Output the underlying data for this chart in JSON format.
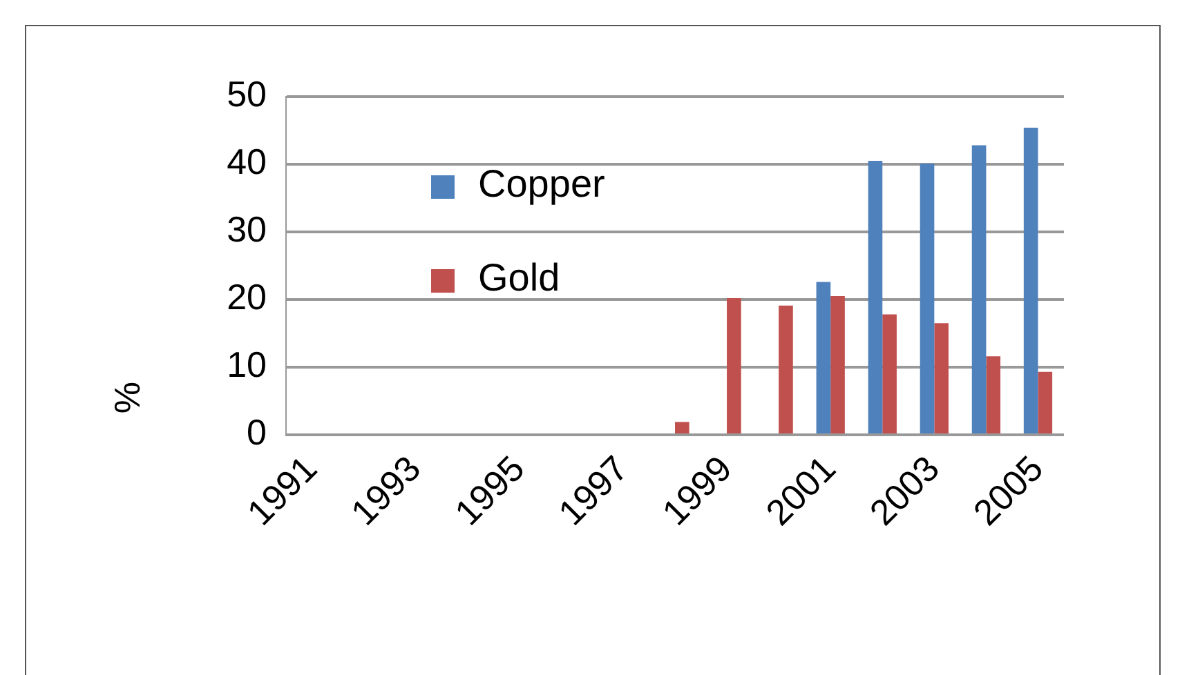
{
  "chart_data": {
    "type": "bar",
    "ylabel": "%",
    "categories": [
      "1991",
      null,
      "1993",
      null,
      "1995",
      null,
      "1997",
      null,
      "1999",
      null,
      "2001",
      null,
      "2003",
      null,
      "2005"
    ],
    "series": [
      {
        "name": "Copper",
        "color": "#4f81bd",
        "values": [
          0,
          0,
          0,
          0,
          0,
          0,
          0,
          0,
          0,
          0,
          22.6,
          40.5,
          40.1,
          42.8,
          45.4
        ]
      },
      {
        "name": "Gold",
        "color": "#c0504d",
        "values": [
          0,
          0,
          0,
          0,
          0,
          0,
          0,
          1.9,
          20.2,
          19.1,
          20.5,
          17.8,
          16.5,
          11.6,
          9.3
        ]
      }
    ],
    "ylim": [
      0,
      50
    ],
    "yticks": [
      0,
      10,
      20,
      30,
      40,
      50
    ],
    "grid": "y",
    "legend": "top left"
  }
}
